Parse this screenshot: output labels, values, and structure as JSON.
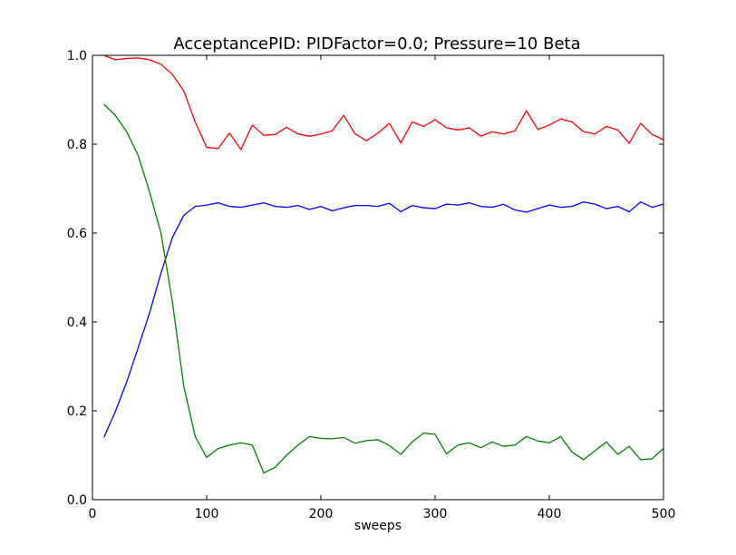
{
  "chart_data": {
    "type": "line",
    "title": "AcceptancePID: PIDFactor=0.0; Pressure=10 Beta",
    "xlabel": "sweeps",
    "ylabel": "",
    "xlim": [
      0,
      500
    ],
    "ylim": [
      0.0,
      1.0
    ],
    "xticks": [
      0,
      100,
      200,
      300,
      400,
      500
    ],
    "yticks": [
      0.0,
      0.2,
      0.4,
      0.6,
      0.8,
      1.0
    ],
    "xtick_labels": [
      "0",
      "100",
      "200",
      "300",
      "400",
      "500"
    ],
    "ytick_labels": [
      "0.0",
      "0.2",
      "0.4",
      "0.6",
      "0.8",
      "1.0"
    ],
    "grid": false,
    "x": [
      10,
      20,
      30,
      40,
      50,
      60,
      70,
      80,
      90,
      100,
      110,
      120,
      130,
      140,
      150,
      160,
      170,
      180,
      190,
      200,
      210,
      220,
      230,
      240,
      250,
      260,
      270,
      280,
      290,
      300,
      310,
      320,
      330,
      340,
      350,
      360,
      370,
      380,
      390,
      400,
      410,
      420,
      430,
      440,
      450,
      460,
      470,
      480,
      490,
      500
    ],
    "series": [
      {
        "color": "#ff0000",
        "values": [
          1.0,
          0.99,
          0.993,
          0.994,
          0.99,
          0.98,
          0.957,
          0.92,
          0.85,
          0.793,
          0.79,
          0.825,
          0.788,
          0.843,
          0.82,
          0.822,
          0.838,
          0.823,
          0.818,
          0.823,
          0.83,
          0.865,
          0.823,
          0.808,
          0.825,
          0.847,
          0.803,
          0.85,
          0.84,
          0.855,
          0.837,
          0.832,
          0.837,
          0.818,
          0.828,
          0.823,
          0.83,
          0.875,
          0.833,
          0.843,
          0.857,
          0.85,
          0.828,
          0.823,
          0.84,
          0.832,
          0.802,
          0.847,
          0.822,
          0.81
        ]
      },
      {
        "color": "#0000ff",
        "values": [
          0.14,
          0.198,
          0.265,
          0.342,
          0.42,
          0.51,
          0.59,
          0.64,
          0.66,
          0.663,
          0.668,
          0.66,
          0.658,
          0.663,
          0.668,
          0.66,
          0.658,
          0.662,
          0.653,
          0.66,
          0.65,
          0.657,
          0.662,
          0.662,
          0.66,
          0.667,
          0.648,
          0.662,
          0.657,
          0.655,
          0.665,
          0.663,
          0.668,
          0.66,
          0.658,
          0.665,
          0.652,
          0.647,
          0.655,
          0.663,
          0.658,
          0.66,
          0.67,
          0.665,
          0.655,
          0.66,
          0.648,
          0.67,
          0.658,
          0.665
        ]
      },
      {
        "color": "#008000",
        "values": [
          0.89,
          0.865,
          0.828,
          0.775,
          0.693,
          0.6,
          0.445,
          0.255,
          0.142,
          0.095,
          0.115,
          0.123,
          0.128,
          0.123,
          0.06,
          0.073,
          0.1,
          0.123,
          0.142,
          0.138,
          0.137,
          0.14,
          0.127,
          0.133,
          0.135,
          0.122,
          0.102,
          0.13,
          0.15,
          0.147,
          0.103,
          0.123,
          0.128,
          0.117,
          0.13,
          0.12,
          0.123,
          0.142,
          0.132,
          0.128,
          0.142,
          0.107,
          0.09,
          0.11,
          0.13,
          0.102,
          0.12,
          0.09,
          0.092,
          0.115
        ]
      }
    ]
  }
}
